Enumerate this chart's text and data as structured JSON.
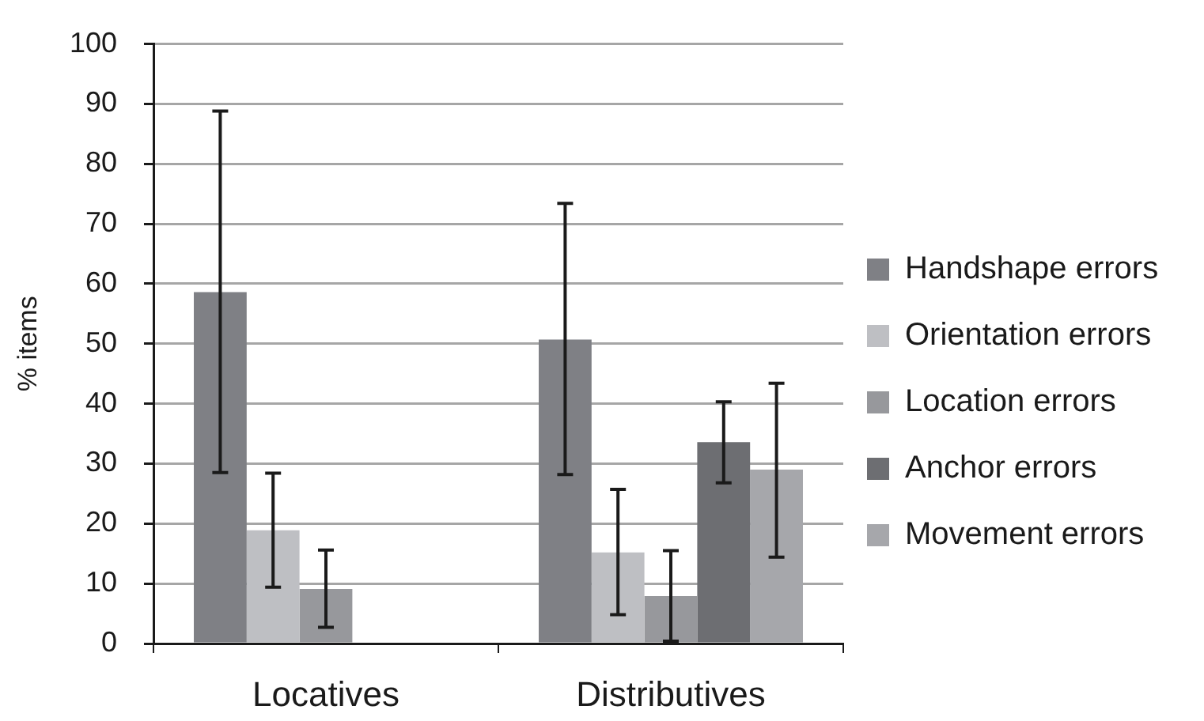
{
  "chart_data": {
    "type": "bar",
    "ylabel": "% items",
    "categories": [
      "Locatives",
      "Distributives"
    ],
    "series": [
      {
        "name": "Handshape errors",
        "color": "#7f8085",
        "values": [
          58.6,
          50.7
        ],
        "errors": [
          [
            28.5,
            88.8
          ],
          [
            28.2,
            73.4
          ]
        ]
      },
      {
        "name": "Orientation errors",
        "color": "#bebfc3",
        "values": [
          18.9,
          15.2
        ],
        "errors": [
          [
            9.4,
            28.4
          ],
          [
            4.8,
            25.7
          ]
        ]
      },
      {
        "name": "Location errors",
        "color": "#97989c",
        "values": [
          9.1,
          7.9
        ],
        "errors": [
          [
            2.7,
            15.6
          ],
          [
            0.4,
            15.5
          ]
        ]
      },
      {
        "name": "Anchor errors",
        "color": "#6d6e72",
        "values": [
          null,
          33.6
        ],
        "errors": [
          null,
          [
            26.8,
            40.3
          ]
        ]
      },
      {
        "name": "Movement errors",
        "color": "#a6a7ab",
        "values": [
          null,
          29.0
        ],
        "errors": [
          null,
          [
            14.4,
            43.4
          ]
        ]
      }
    ],
    "ylim": [
      0,
      100
    ],
    "yticks": [
      0,
      10,
      20,
      30,
      40,
      50,
      60,
      70,
      80,
      90,
      100
    ],
    "grid": "y",
    "legend": "right"
  }
}
